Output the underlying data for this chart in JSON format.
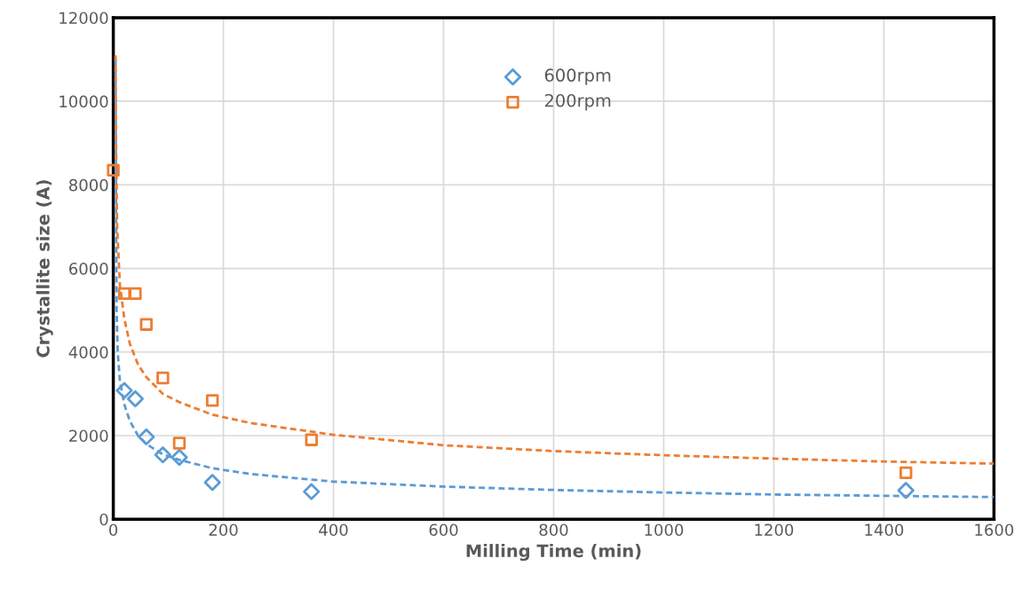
{
  "chart_data": {
    "type": "scatter",
    "xlabel": "Milling Time (min)",
    "ylabel": "Crystallite size (A)",
    "xlim": [
      0,
      1600
    ],
    "xticks": [
      0,
      200,
      400,
      600,
      800,
      1000,
      1200,
      1400,
      1600
    ],
    "ylim": [
      0,
      12000
    ],
    "yticks": [
      0,
      2000,
      4000,
      6000,
      8000,
      10000,
      12000
    ],
    "grid": true,
    "legend": "top",
    "series": [
      {
        "name": "600rpm",
        "marker": "diamond",
        "color": "#5b9bd5",
        "x": [
          20,
          40,
          60,
          90,
          120,
          180,
          360,
          1440
        ],
        "values": [
          3080,
          2880,
          1970,
          1540,
          1480,
          880,
          660,
          690
        ]
      },
      {
        "name": "200rpm",
        "marker": "square",
        "color": "#ed7d31",
        "x": [
          0,
          20,
          40,
          60,
          90,
          120,
          180,
          360,
          1440
        ],
        "values": [
          8350,
          5400,
          5400,
          4660,
          3380,
          1820,
          2840,
          1900,
          1110
        ]
      },
      {
        "type": "line",
        "line_style": "dashed",
        "marker": "none",
        "color": "#5b9bd5",
        "x": [
          4,
          5,
          6,
          8,
          12,
          20,
          30,
          45,
          60,
          90,
          120,
          180,
          250,
          400,
          600,
          800,
          1000,
          1200,
          1400,
          1600
        ],
        "values": [
          11000,
          7500,
          5000,
          4000,
          3300,
          2750,
          2350,
          2000,
          1800,
          1550,
          1420,
          1220,
          1080,
          900,
          780,
          700,
          640,
          590,
          560,
          530
        ]
      },
      {
        "type": "line",
        "line_style": "dashed",
        "marker": "none",
        "color": "#ed7d31",
        "x": [
          4,
          5,
          7,
          12,
          20,
          30,
          45,
          60,
          90,
          120,
          180,
          250,
          400,
          600,
          800,
          1000,
          1200,
          1400,
          1600
        ],
        "values": [
          11100,
          9000,
          7000,
          5600,
          4800,
          4200,
          3700,
          3400,
          3000,
          2800,
          2500,
          2300,
          2020,
          1770,
          1630,
          1530,
          1450,
          1380,
          1330
        ]
      }
    ]
  }
}
